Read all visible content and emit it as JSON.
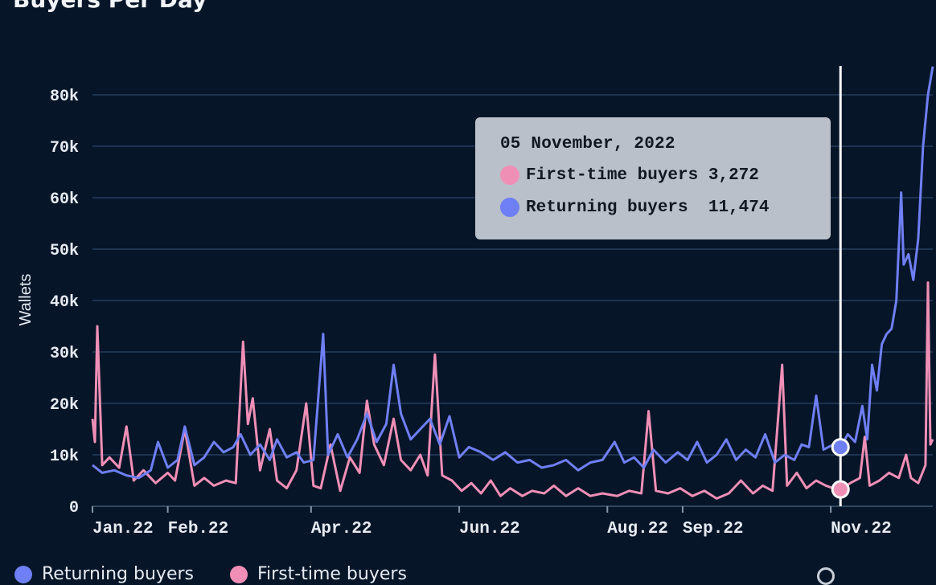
{
  "colors": {
    "first_time": "#f08fb6",
    "returning": "#6f7ff5",
    "grid": "#1d3350",
    "cursor": "#ffffff"
  },
  "chart_data": {
    "type": "line",
    "title": "Buyers Per Day",
    "ylabel": "Wallets",
    "xlabel": "",
    "ylim": [
      0,
      85000
    ],
    "y_ticks": [
      0,
      10000,
      20000,
      30000,
      40000,
      50000,
      60000,
      70000,
      80000
    ],
    "y_tick_labels": [
      "0",
      "10k",
      "20k",
      "30k",
      "40k",
      "50k",
      "60k",
      "70k",
      "80k"
    ],
    "x_range": [
      "2022-01-01",
      "2022-12-13"
    ],
    "x_ticks": [
      {
        "date": "2022-01-01",
        "label": "Jan.22"
      },
      {
        "date": "2022-02-01",
        "label": "Feb.22"
      },
      {
        "date": "2022-04-01",
        "label": "Apr.22"
      },
      {
        "date": "2022-06-01",
        "label": "Jun.22"
      },
      {
        "date": "2022-08-01",
        "label": "Aug.22"
      },
      {
        "date": "2022-09-01",
        "label": "Sep.22"
      },
      {
        "date": "2022-11-01",
        "label": "Nov.22"
      }
    ],
    "grid": true,
    "legend": "bottom",
    "series": [
      {
        "name": "Returning buyers",
        "color": "#6f7ff5",
        "points": [
          [
            "2022-01-01",
            8000
          ],
          [
            "2022-01-05",
            6500
          ],
          [
            "2022-01-10",
            7000
          ],
          [
            "2022-01-15",
            6000
          ],
          [
            "2022-01-20",
            5500
          ],
          [
            "2022-01-25",
            7000
          ],
          [
            "2022-01-28",
            12500
          ],
          [
            "2022-02-01",
            7500
          ],
          [
            "2022-02-05",
            9000
          ],
          [
            "2022-02-08",
            15500
          ],
          [
            "2022-02-12",
            8000
          ],
          [
            "2022-02-16",
            9500
          ],
          [
            "2022-02-20",
            12500
          ],
          [
            "2022-02-24",
            10500
          ],
          [
            "2022-02-28",
            11500
          ],
          [
            "2022-03-03",
            14000
          ],
          [
            "2022-03-07",
            10000
          ],
          [
            "2022-03-11",
            12000
          ],
          [
            "2022-03-15",
            9000
          ],
          [
            "2022-03-18",
            13000
          ],
          [
            "2022-03-22",
            9500
          ],
          [
            "2022-03-26",
            10500
          ],
          [
            "2022-03-29",
            8500
          ],
          [
            "2022-04-02",
            9000
          ],
          [
            "2022-04-06",
            33500
          ],
          [
            "2022-04-08",
            10000
          ],
          [
            "2022-04-12",
            14000
          ],
          [
            "2022-04-16",
            9500
          ],
          [
            "2022-04-20",
            13000
          ],
          [
            "2022-04-24",
            18000
          ],
          [
            "2022-04-28",
            12500
          ],
          [
            "2022-05-02",
            16000
          ],
          [
            "2022-05-05",
            27500
          ],
          [
            "2022-05-08",
            18000
          ],
          [
            "2022-05-12",
            13000
          ],
          [
            "2022-05-16",
            15000
          ],
          [
            "2022-05-20",
            17000
          ],
          [
            "2022-05-24",
            12000
          ],
          [
            "2022-05-28",
            17500
          ],
          [
            "2022-06-01",
            9500
          ],
          [
            "2022-06-05",
            11500
          ],
          [
            "2022-06-10",
            10500
          ],
          [
            "2022-06-15",
            9000
          ],
          [
            "2022-06-20",
            10500
          ],
          [
            "2022-06-25",
            8500
          ],
          [
            "2022-06-30",
            9000
          ],
          [
            "2022-07-05",
            7500
          ],
          [
            "2022-07-10",
            8000
          ],
          [
            "2022-07-15",
            9000
          ],
          [
            "2022-07-20",
            7000
          ],
          [
            "2022-07-25",
            8500
          ],
          [
            "2022-07-30",
            9000
          ],
          [
            "2022-08-04",
            12500
          ],
          [
            "2022-08-08",
            8500
          ],
          [
            "2022-08-12",
            9500
          ],
          [
            "2022-08-16",
            7500
          ],
          [
            "2022-08-20",
            11000
          ],
          [
            "2022-08-25",
            8500
          ],
          [
            "2022-08-30",
            10500
          ],
          [
            "2022-09-03",
            9000
          ],
          [
            "2022-09-07",
            12500
          ],
          [
            "2022-09-11",
            8500
          ],
          [
            "2022-09-15",
            10000
          ],
          [
            "2022-09-19",
            13000
          ],
          [
            "2022-09-23",
            9000
          ],
          [
            "2022-09-27",
            11000
          ],
          [
            "2022-10-01",
            9500
          ],
          [
            "2022-10-05",
            14000
          ],
          [
            "2022-10-09",
            8500
          ],
          [
            "2022-10-13",
            10000
          ],
          [
            "2022-10-17",
            9000
          ],
          [
            "2022-10-20",
            12000
          ],
          [
            "2022-10-23",
            11500
          ],
          [
            "2022-10-26",
            21500
          ],
          [
            "2022-10-29",
            11000
          ],
          [
            "2022-11-02",
            12000
          ],
          [
            "2022-11-05",
            11474
          ],
          [
            "2022-11-08",
            14000
          ],
          [
            "2022-11-11",
            12500
          ],
          [
            "2022-11-14",
            19500
          ],
          [
            "2022-11-16",
            13000
          ],
          [
            "2022-11-18",
            27500
          ],
          [
            "2022-11-20",
            22500
          ],
          [
            "2022-11-22",
            31500
          ],
          [
            "2022-11-24",
            33500
          ],
          [
            "2022-11-26",
            34500
          ],
          [
            "2022-11-28",
            40000
          ],
          [
            "2022-11-30",
            61000
          ],
          [
            "2022-12-01",
            47000
          ],
          [
            "2022-12-03",
            49000
          ],
          [
            "2022-12-05",
            44000
          ],
          [
            "2022-12-07",
            52000
          ],
          [
            "2022-12-09",
            70000
          ],
          [
            "2022-12-11",
            80000
          ],
          [
            "2022-12-13",
            85500
          ]
        ]
      },
      {
        "name": "First-time buyers",
        "color": "#f08fb6",
        "points": [
          [
            "2022-01-01",
            17000
          ],
          [
            "2022-01-02",
            12500
          ],
          [
            "2022-01-03",
            35000
          ],
          [
            "2022-01-05",
            8000
          ],
          [
            "2022-01-08",
            9500
          ],
          [
            "2022-01-12",
            7500
          ],
          [
            "2022-01-15",
            15500
          ],
          [
            "2022-01-18",
            5000
          ],
          [
            "2022-01-22",
            7000
          ],
          [
            "2022-01-27",
            4500
          ],
          [
            "2022-02-01",
            6500
          ],
          [
            "2022-02-04",
            5000
          ],
          [
            "2022-02-08",
            15000
          ],
          [
            "2022-02-12",
            4000
          ],
          [
            "2022-02-16",
            5500
          ],
          [
            "2022-02-20",
            4000
          ],
          [
            "2022-02-25",
            5000
          ],
          [
            "2022-03-01",
            4500
          ],
          [
            "2022-03-04",
            32000
          ],
          [
            "2022-03-06",
            16000
          ],
          [
            "2022-03-08",
            21000
          ],
          [
            "2022-03-11",
            7000
          ],
          [
            "2022-03-15",
            15000
          ],
          [
            "2022-03-18",
            5000
          ],
          [
            "2022-03-22",
            3500
          ],
          [
            "2022-03-26",
            7000
          ],
          [
            "2022-03-30",
            20000
          ],
          [
            "2022-04-02",
            4000
          ],
          [
            "2022-04-05",
            3500
          ],
          [
            "2022-04-09",
            12000
          ],
          [
            "2022-04-13",
            3000
          ],
          [
            "2022-04-17",
            9500
          ],
          [
            "2022-04-21",
            6500
          ],
          [
            "2022-04-24",
            20500
          ],
          [
            "2022-04-27",
            12000
          ],
          [
            "2022-05-01",
            8000
          ],
          [
            "2022-05-05",
            17000
          ],
          [
            "2022-05-08",
            9000
          ],
          [
            "2022-05-12",
            7000
          ],
          [
            "2022-05-16",
            10000
          ],
          [
            "2022-05-19",
            6000
          ],
          [
            "2022-05-22",
            29500
          ],
          [
            "2022-05-25",
            6000
          ],
          [
            "2022-05-29",
            5000
          ],
          [
            "2022-06-02",
            3000
          ],
          [
            "2022-06-06",
            4500
          ],
          [
            "2022-06-10",
            2500
          ],
          [
            "2022-06-14",
            5000
          ],
          [
            "2022-06-18",
            2000
          ],
          [
            "2022-06-22",
            3500
          ],
          [
            "2022-06-27",
            2000
          ],
          [
            "2022-07-01",
            3000
          ],
          [
            "2022-07-06",
            2500
          ],
          [
            "2022-07-10",
            4000
          ],
          [
            "2022-07-15",
            2000
          ],
          [
            "2022-07-20",
            3500
          ],
          [
            "2022-07-25",
            2000
          ],
          [
            "2022-07-30",
            2500
          ],
          [
            "2022-08-05",
            2000
          ],
          [
            "2022-08-10",
            3000
          ],
          [
            "2022-08-15",
            2500
          ],
          [
            "2022-08-18",
            18500
          ],
          [
            "2022-08-21",
            3000
          ],
          [
            "2022-08-26",
            2500
          ],
          [
            "2022-08-31",
            3500
          ],
          [
            "2022-09-05",
            2000
          ],
          [
            "2022-09-10",
            3000
          ],
          [
            "2022-09-15",
            1500
          ],
          [
            "2022-09-20",
            2500
          ],
          [
            "2022-09-25",
            5000
          ],
          [
            "2022-09-30",
            2500
          ],
          [
            "2022-10-04",
            4000
          ],
          [
            "2022-10-08",
            3000
          ],
          [
            "2022-10-12",
            27500
          ],
          [
            "2022-10-14",
            4000
          ],
          [
            "2022-10-18",
            6500
          ],
          [
            "2022-10-22",
            3500
          ],
          [
            "2022-10-26",
            5000
          ],
          [
            "2022-10-30",
            4000
          ],
          [
            "2022-11-02",
            3500
          ],
          [
            "2022-11-05",
            3272
          ],
          [
            "2022-11-09",
            4500
          ],
          [
            "2022-11-13",
            5500
          ],
          [
            "2022-11-15",
            13500
          ],
          [
            "2022-11-17",
            4000
          ],
          [
            "2022-11-21",
            5000
          ],
          [
            "2022-11-25",
            6500
          ],
          [
            "2022-11-29",
            5500
          ],
          [
            "2022-12-02",
            10000
          ],
          [
            "2022-12-04",
            5500
          ],
          [
            "2022-12-07",
            4500
          ],
          [
            "2022-12-10",
            8000
          ],
          [
            "2022-12-11",
            43500
          ],
          [
            "2022-12-12",
            12000
          ],
          [
            "2022-12-13",
            13000
          ]
        ]
      }
    ],
    "tooltip": {
      "date_key": "2022-11-05",
      "date": "05 November, 2022",
      "rows": [
        {
          "label": "First-time buyers",
          "value": "3,272",
          "color": "#f08fb6"
        },
        {
          "label": "Returning buyers",
          "value": "11,474",
          "color": "#6f7ff5"
        }
      ]
    }
  }
}
